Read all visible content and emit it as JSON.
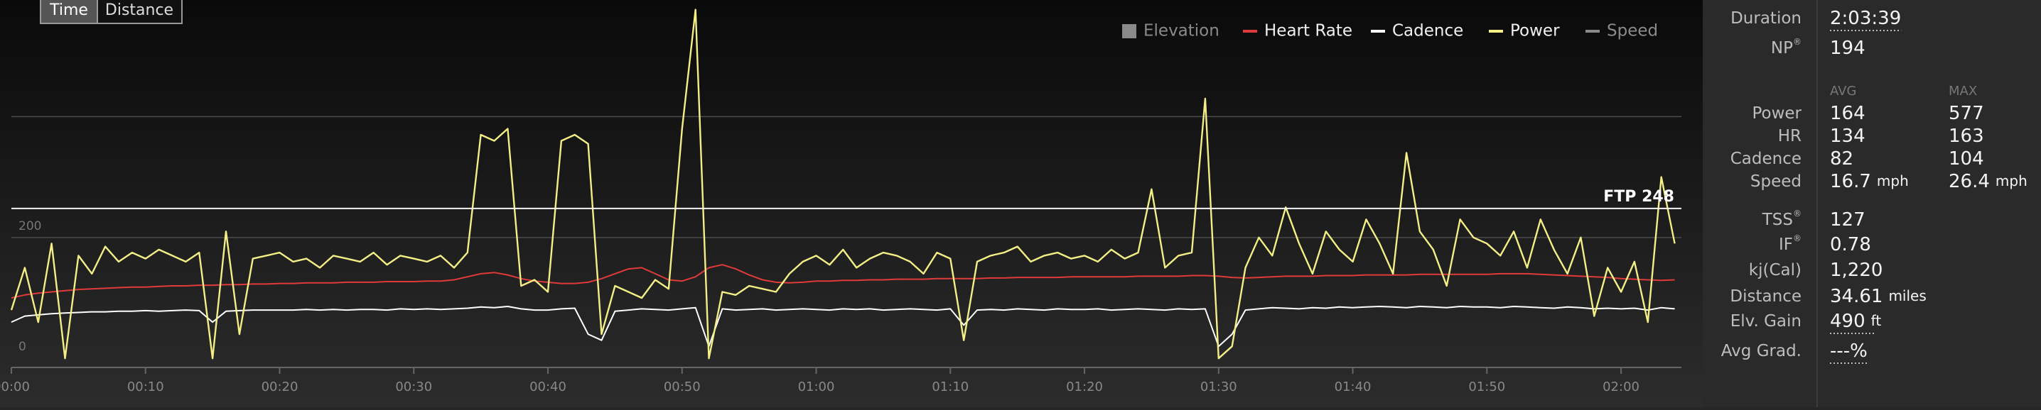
{
  "view_toggle": [
    "Time",
    "Distance"
  ],
  "chart_data": {
    "type": "line",
    "x": [
      0,
      1,
      2,
      3,
      4,
      5,
      6,
      7,
      8,
      9,
      10,
      11,
      12,
      13,
      14,
      15,
      16,
      17,
      18,
      19,
      20,
      21,
      22,
      23,
      24,
      25,
      26,
      27,
      28,
      29,
      30,
      31,
      32,
      33,
      34,
      35,
      36,
      37,
      38,
      39,
      40,
      41,
      42,
      43,
      44,
      45,
      46,
      47,
      48,
      49,
      50,
      51,
      52,
      53,
      54,
      55,
      56,
      57,
      58,
      59,
      60,
      61,
      62,
      63,
      64,
      65,
      66,
      67,
      68,
      69,
      70,
      71,
      72,
      73,
      74,
      75,
      76,
      77,
      78,
      79,
      80,
      81,
      82,
      83,
      84,
      85,
      86,
      87,
      88,
      89,
      90,
      91,
      92,
      93,
      94,
      95,
      96,
      97,
      98,
      99,
      100,
      101,
      102,
      103,
      104,
      105,
      106,
      107,
      108,
      109,
      110,
      111,
      112,
      113,
      114,
      115,
      116,
      117,
      118,
      119,
      120,
      121,
      122,
      123,
      124
    ],
    "xlim": [
      0,
      124.5
    ],
    "xticks": [
      {
        "value": 0,
        "label": "00:00"
      },
      {
        "value": 10,
        "label": "00:10"
      },
      {
        "value": 20,
        "label": "00:20"
      },
      {
        "value": 30,
        "label": "00:30"
      },
      {
        "value": 40,
        "label": "00:40"
      },
      {
        "value": 50,
        "label": "00:50"
      },
      {
        "value": 60,
        "label": "01:00"
      },
      {
        "value": 70,
        "label": "01:10"
      },
      {
        "value": 80,
        "label": "01:20"
      },
      {
        "value": 90,
        "label": "01:30"
      },
      {
        "value": 100,
        "label": "01:40"
      },
      {
        "value": 110,
        "label": "01:50"
      },
      {
        "value": 120,
        "label": "02:00"
      }
    ],
    "ylim": [
      -15,
      593
    ],
    "yticks": [
      0,
      200
    ],
    "extra_gridlines": [
      400
    ],
    "ftp": {
      "value": 248,
      "label": "FTP 248"
    },
    "series": [
      {
        "name": "Elevation",
        "color": "#8a8a8a",
        "marker": "square",
        "visible": false,
        "values": null
      },
      {
        "name": "Heart Rate",
        "color": "#e03a3a",
        "marker": "line",
        "visible": true,
        "values": [
          100,
          105,
          108,
          110,
          112,
          114,
          115,
          116,
          117,
          118,
          118,
          119,
          120,
          120,
          121,
          121,
          122,
          122,
          123,
          123,
          124,
          124,
          125,
          125,
          125,
          126,
          126,
          126,
          127,
          127,
          127,
          128,
          128,
          130,
          135,
          140,
          142,
          138,
          132,
          128,
          126,
          124,
          124,
          126,
          132,
          140,
          148,
          150,
          140,
          130,
          128,
          135,
          150,
          155,
          148,
          138,
          130,
          126,
          125,
          126,
          128,
          128,
          129,
          129,
          130,
          130,
          131,
          131,
          131,
          132,
          132,
          132,
          132,
          133,
          133,
          134,
          134,
          134,
          134,
          135,
          135,
          135,
          135,
          135,
          136,
          136,
          136,
          136,
          137,
          137,
          136,
          134,
          133,
          134,
          135,
          136,
          136,
          136,
          137,
          137,
          137,
          138,
          138,
          138,
          138,
          139,
          139,
          139,
          139,
          139,
          139,
          140,
          140,
          140,
          139,
          138,
          137,
          136,
          135,
          134,
          132,
          131,
          130,
          129,
          130
        ]
      },
      {
        "name": "Cadence",
        "color": "#ffffff",
        "marker": "line",
        "visible": true,
        "values": [
          60,
          70,
          72,
          74,
          75,
          76,
          77,
          77,
          78,
          78,
          79,
          78,
          79,
          80,
          79,
          60,
          78,
          79,
          80,
          80,
          80,
          80,
          81,
          80,
          81,
          80,
          81,
          81,
          80,
          82,
          81,
          82,
          81,
          82,
          83,
          85,
          84,
          86,
          82,
          80,
          80,
          82,
          83,
          40,
          30,
          78,
          80,
          82,
          81,
          80,
          82,
          84,
          20,
          82,
          80,
          81,
          82,
          80,
          81,
          82,
          81,
          80,
          82,
          81,
          82,
          80,
          81,
          82,
          81,
          80,
          82,
          55,
          80,
          81,
          80,
          82,
          81,
          80,
          82,
          81,
          81,
          82,
          80,
          81,
          82,
          81,
          80,
          82,
          81,
          82,
          20,
          40,
          80,
          82,
          84,
          83,
          82,
          84,
          83,
          85,
          84,
          85,
          86,
          85,
          84,
          86,
          85,
          84,
          86,
          85,
          85,
          84,
          86,
          85,
          84,
          83,
          85,
          84,
          82,
          83,
          82,
          83,
          80,
          84,
          82
        ]
      },
      {
        "name": "Power",
        "color": "#f3ee86",
        "marker": "line",
        "visible": true,
        "values": [
          80,
          150,
          60,
          190,
          0,
          170,
          140,
          185,
          160,
          175,
          165,
          180,
          170,
          160,
          175,
          0,
          210,
          40,
          165,
          170,
          175,
          160,
          165,
          150,
          170,
          165,
          160,
          175,
          155,
          170,
          165,
          160,
          170,
          150,
          175,
          370,
          360,
          380,
          120,
          130,
          110,
          360,
          370,
          355,
          40,
          120,
          110,
          100,
          130,
          115,
          380,
          577,
          0,
          110,
          105,
          120,
          115,
          110,
          140,
          160,
          170,
          155,
          180,
          150,
          165,
          175,
          170,
          160,
          140,
          175,
          165,
          30,
          160,
          170,
          175,
          185,
          160,
          170,
          175,
          165,
          170,
          160,
          180,
          165,
          175,
          280,
          150,
          170,
          175,
          430,
          0,
          20,
          150,
          200,
          170,
          250,
          190,
          140,
          210,
          180,
          160,
          230,
          190,
          140,
          340,
          210,
          180,
          120,
          230,
          200,
          190,
          170,
          210,
          150,
          230,
          180,
          140,
          200,
          70,
          150,
          110,
          160,
          60,
          300,
          190
        ]
      },
      {
        "name": "Speed",
        "color": "#8a8a8a",
        "marker": "line",
        "visible": false,
        "values": null
      }
    ]
  },
  "stats": {
    "rows": [
      {
        "label": "Duration",
        "avg": "2:03:39",
        "underline": true
      },
      {
        "label": "NP",
        "sup": "®",
        "avg": "194"
      }
    ],
    "headers": [
      "AVG",
      "MAX"
    ],
    "metrics": [
      {
        "label": "Power",
        "avg": "164",
        "max": "577"
      },
      {
        "label": "HR",
        "avg": "134",
        "max": "163"
      },
      {
        "label": "Cadence",
        "avg": "82",
        "max": "104"
      },
      {
        "label": "Speed",
        "avg": "16.7",
        "avg_unit": "mph",
        "max": "26.4",
        "max_unit": "mph"
      }
    ],
    "summary": [
      {
        "label": "TSS",
        "sup": "®",
        "avg": "127"
      },
      {
        "label": "IF",
        "sup": "®",
        "avg": "0.78"
      },
      {
        "label": "kj(Cal)",
        "avg": "1,220"
      },
      {
        "label": "Distance",
        "avg": "34.61",
        "avg_unit": "miles"
      },
      {
        "label": "Elv. Gain",
        "avg": "490",
        "avg_unit": "ft",
        "underline": true
      },
      {
        "label": "Avg Grad.",
        "avg": "---%",
        "underline": true
      }
    ]
  }
}
